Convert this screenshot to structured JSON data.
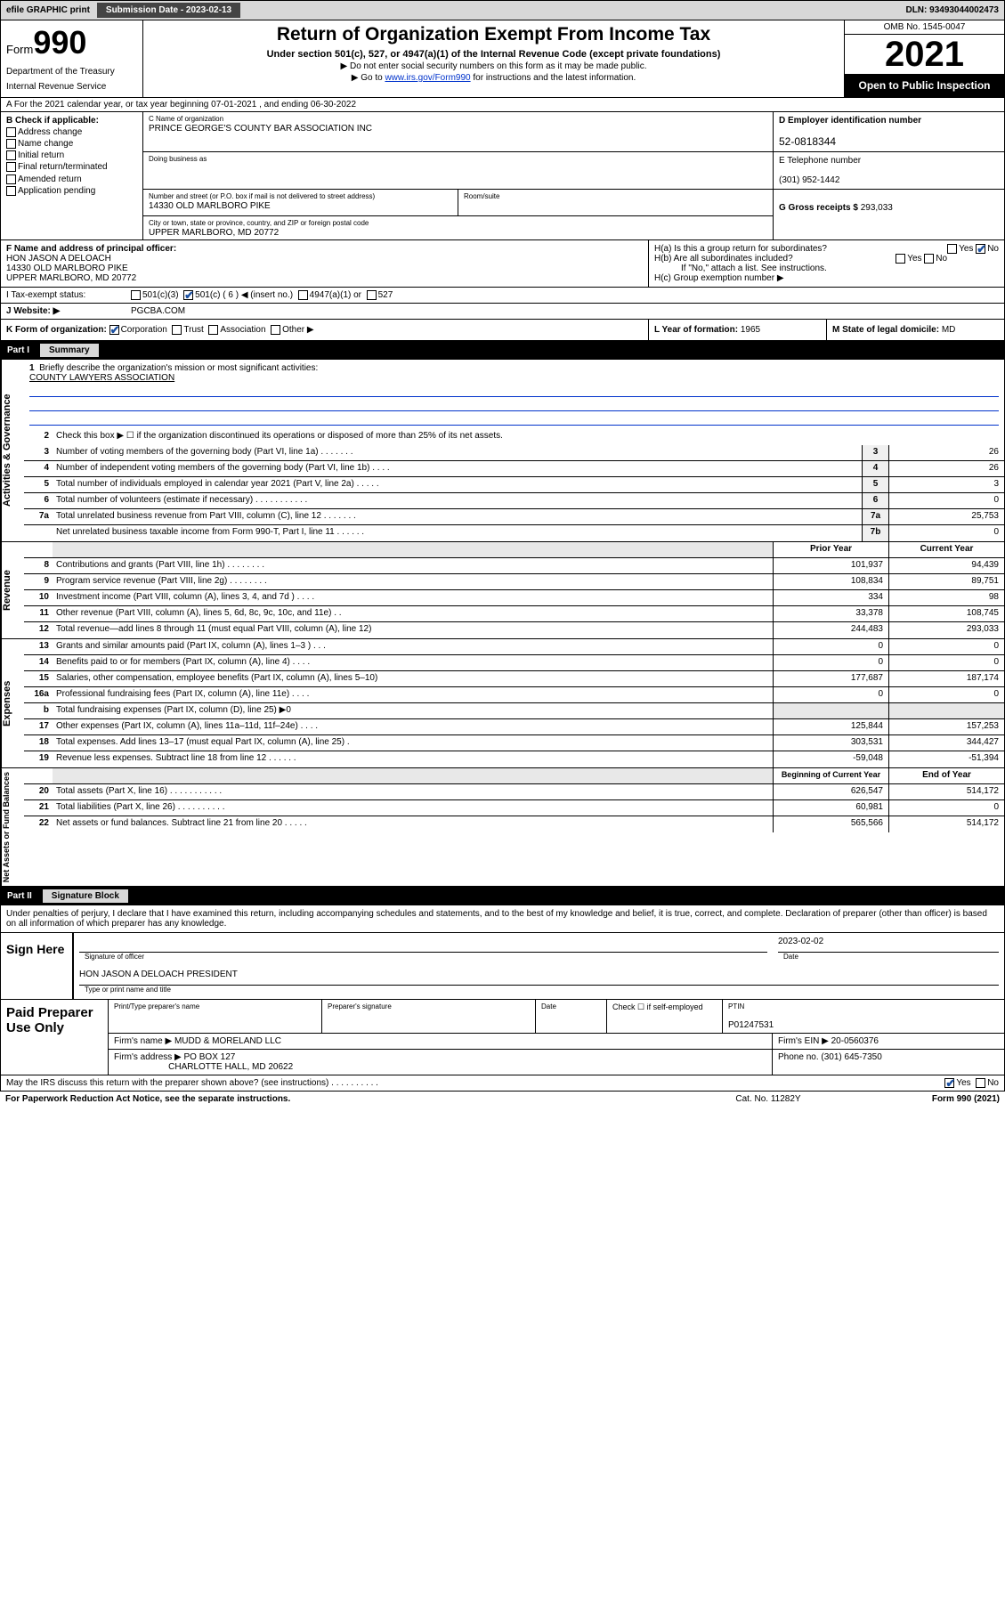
{
  "topbar": {
    "efile": "efile GRAPHIC print",
    "submission_label": "Submission Date - 2023-02-13",
    "dln": "DLN: 93493044002473"
  },
  "header": {
    "form_word": "Form",
    "form_num": "990",
    "dept": "Department of the Treasury",
    "irs": "Internal Revenue Service",
    "title": "Return of Organization Exempt From Income Tax",
    "sub": "Under section 501(c), 527, or 4947(a)(1) of the Internal Revenue Code (except private foundations)",
    "note1": "▶ Do not enter social security numbers on this form as it may be made public.",
    "note2_pre": "▶ Go to ",
    "note2_link": "www.irs.gov/Form990",
    "note2_post": " for instructions and the latest information.",
    "omb": "OMB No. 1545-0047",
    "year": "2021",
    "inspect": "Open to Public Inspection"
  },
  "line_a": "A For the 2021 calendar year, or tax year beginning 07-01-2021   , and ending 06-30-2022",
  "b": {
    "label": "B Check if applicable:",
    "items": [
      "Address change",
      "Name change",
      "Initial return",
      "Final return/terminated",
      "Amended return",
      "Application pending"
    ]
  },
  "c": {
    "name_lbl": "C Name of organization",
    "name": "PRINCE GEORGE'S COUNTY BAR ASSOCIATION INC",
    "dba_lbl": "Doing business as",
    "dba": "",
    "street_lbl": "Number and street (or P.O. box if mail is not delivered to street address)",
    "room_lbl": "Room/suite",
    "street": "14330 OLD MARLBORO PIKE",
    "city_lbl": "City or town, state or province, country, and ZIP or foreign postal code",
    "city": "UPPER MARLBORO, MD  20772"
  },
  "d": {
    "lbl": "D Employer identification number",
    "val": "52-0818344"
  },
  "e": {
    "lbl": "E Telephone number",
    "val": "(301) 952-1442"
  },
  "g": {
    "lbl": "G Gross receipts $",
    "val": "293,033"
  },
  "f": {
    "lbl": "F Name and address of principal officer:",
    "name": "HON JASON A DELOACH",
    "addr1": "14330 OLD MARLBORO PIKE",
    "addr2": "UPPER MARLBORO, MD  20772"
  },
  "h": {
    "a": "H(a)  Is this a group return for subordinates?",
    "b": "H(b)  Are all subordinates included?",
    "b_note": "If \"No,\" attach a list. See instructions.",
    "c": "H(c)  Group exemption number ▶",
    "yes": "Yes",
    "no": "No"
  },
  "i": {
    "lbl": "I   Tax-exempt status:",
    "o1": "501(c)(3)",
    "o2": "501(c) ( 6 ) ◀ (insert no.)",
    "o3": "4947(a)(1) or",
    "o4": "527"
  },
  "j": {
    "lbl": "J   Website: ▶",
    "val": "PGCBA.COM"
  },
  "k": {
    "lbl": "K Form of organization:",
    "o1": "Corporation",
    "o2": "Trust",
    "o3": "Association",
    "o4": "Other ▶"
  },
  "l": {
    "lbl": "L Year of formation:",
    "val": "1965"
  },
  "m": {
    "lbl": "M State of legal domicile:",
    "val": "MD"
  },
  "parts": {
    "p1": "Part I",
    "p1t": "Summary",
    "p2": "Part II",
    "p2t": "Signature Block"
  },
  "side": {
    "gov": "Activities & Governance",
    "rev": "Revenue",
    "exp": "Expenses",
    "net": "Net Assets or Fund Balances"
  },
  "summary": {
    "l1_lbl": "Briefly describe the organization's mission or most significant activities:",
    "l1_val": "COUNTY LAWYERS ASSOCIATION",
    "l2": "Check this box ▶ ☐  if the organization discontinued its operations or disposed of more than 25% of its net assets.",
    "rows_gov": [
      {
        "n": "3",
        "t": "Number of voting members of the governing body (Part VI, line 1a)   .    .    .    .    .    .    .",
        "b": "3",
        "v": "26"
      },
      {
        "n": "4",
        "t": "Number of independent voting members of the governing body (Part VI, line 1b)    .    .    .    .",
        "b": "4",
        "v": "26"
      },
      {
        "n": "5",
        "t": "Total number of individuals employed in calendar year 2021 (Part V, line 2a)   .    .    .    .    .",
        "b": "5",
        "v": "3"
      },
      {
        "n": "6",
        "t": "Total number of volunteers (estimate if necessary)   .    .    .    .    .    .    .    .    .    .    .",
        "b": "6",
        "v": "0"
      },
      {
        "n": "7a",
        "t": "Total unrelated business revenue from Part VIII, column (C), line 12   .    .    .    .    .    .    .",
        "b": "7a",
        "v": "25,753"
      },
      {
        "n": "",
        "t": "Net unrelated business taxable income from Form 990-T, Part I, line 11   .    .    .    .    .    .",
        "b": "7b",
        "v": "0"
      }
    ],
    "hdr_prior": "Prior Year",
    "hdr_curr": "Current Year",
    "rows_rev": [
      {
        "n": "8",
        "t": "Contributions and grants (Part VIII, line 1h)   .    .    .    .    .    .    .    .",
        "p": "101,937",
        "c": "94,439"
      },
      {
        "n": "9",
        "t": "Program service revenue (Part VIII, line 2g)   .    .    .    .    .    .    .    .",
        "p": "108,834",
        "c": "89,751"
      },
      {
        "n": "10",
        "t": "Investment income (Part VIII, column (A), lines 3, 4, and 7d )   .    .    .    .",
        "p": "334",
        "c": "98"
      },
      {
        "n": "11",
        "t": "Other revenue (Part VIII, column (A), lines 5, 6d, 8c, 9c, 10c, and 11e)    .    .",
        "p": "33,378",
        "c": "108,745"
      },
      {
        "n": "12",
        "t": "Total revenue—add lines 8 through 11 (must equal Part VIII, column (A), line 12)",
        "p": "244,483",
        "c": "293,033"
      }
    ],
    "rows_exp": [
      {
        "n": "13",
        "t": "Grants and similar amounts paid (Part IX, column (A), lines 1–3 )   .    .    .",
        "p": "0",
        "c": "0"
      },
      {
        "n": "14",
        "t": "Benefits paid to or for members (Part IX, column (A), line 4)   .    .    .    .",
        "p": "0",
        "c": "0"
      },
      {
        "n": "15",
        "t": "Salaries, other compensation, employee benefits (Part IX, column (A), lines 5–10)",
        "p": "177,687",
        "c": "187,174"
      },
      {
        "n": "16a",
        "t": "Professional fundraising fees (Part IX, column (A), line 11e)   .    .    .    .",
        "p": "0",
        "c": "0"
      },
      {
        "n": "b",
        "t": "Total fundraising expenses (Part IX, column (D), line 25) ▶0",
        "p": "",
        "c": "",
        "shade": true
      },
      {
        "n": "17",
        "t": "Other expenses (Part IX, column (A), lines 11a–11d, 11f–24e)   .    .    .    .",
        "p": "125,844",
        "c": "157,253"
      },
      {
        "n": "18",
        "t": "Total expenses. Add lines 13–17 (must equal Part IX, column (A), line 25)    .",
        "p": "303,531",
        "c": "344,427"
      },
      {
        "n": "19",
        "t": "Revenue less expenses. Subtract line 18 from line 12   .    .    .    .    .    .",
        "p": "-59,048",
        "c": "-51,394"
      }
    ],
    "hdr_beg": "Beginning of Current Year",
    "hdr_end": "End of Year",
    "rows_net": [
      {
        "n": "20",
        "t": "Total assets (Part X, line 16)   .    .    .    .    .    .    .    .    .    .    .",
        "p": "626,547",
        "c": "514,172"
      },
      {
        "n": "21",
        "t": "Total liabilities (Part X, line 26)   .    .    .    .    .    .    .    .    .    .",
        "p": "60,981",
        "c": "0"
      },
      {
        "n": "22",
        "t": "Net assets or fund balances. Subtract line 21 from line 20   .    .    .    .    .",
        "p": "565,566",
        "c": "514,172"
      }
    ]
  },
  "sig": {
    "intro": "Under penalties of perjury, I declare that I have examined this return, including accompanying schedules and statements, and to the best of my knowledge and belief, it is true, correct, and complete. Declaration of preparer (other than officer) is based on all information of which preparer has any knowledge.",
    "sign_here": "Sign Here",
    "sig_officer_lbl": "Signature of officer",
    "date_lbl": "Date",
    "date_val": "2023-02-02",
    "name_title": "HON JASON A DELOACH  PRESIDENT",
    "name_title_lbl": "Type or print name and title"
  },
  "prep": {
    "title": "Paid Preparer Use Only",
    "h1": "Print/Type preparer's name",
    "h2": "Preparer's signature",
    "h3": "Date",
    "h4_chk": "Check ☐ if self-employed",
    "h5": "PTIN",
    "ptin": "P01247531",
    "firm_name_lbl": "Firm's name    ▶",
    "firm_name": "MUDD & MORELAND LLC",
    "firm_ein_lbl": "Firm's EIN ▶",
    "firm_ein": "20-0560376",
    "firm_addr_lbl": "Firm's address ▶",
    "firm_addr1": "PO BOX 127",
    "firm_addr2": "CHARLOTTE HALL, MD  20622",
    "phone_lbl": "Phone no.",
    "phone": "(301) 645-7350"
  },
  "footer": {
    "discuss": "May the IRS discuss this return with the preparer shown above? (see instructions)   .    .    .    .    .    .    .    .    .    .",
    "yes": "Yes",
    "no": "No",
    "pra": "For Paperwork Reduction Act Notice, see the separate instructions.",
    "cat": "Cat. No. 11282Y",
    "form": "Form 990 (2021)"
  }
}
